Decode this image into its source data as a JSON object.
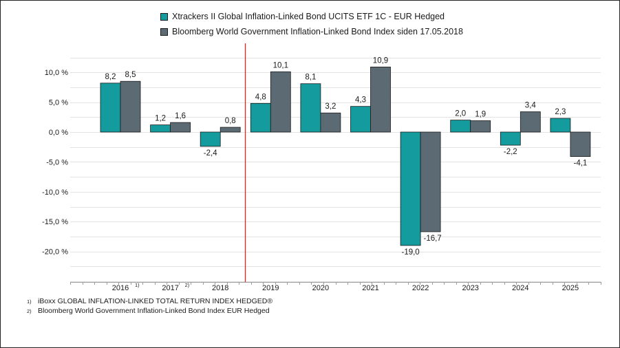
{
  "chart_data": {
    "type": "bar",
    "title": "",
    "xlabel": "",
    "ylabel": "",
    "categories": [
      "2016",
      "2017",
      "2018",
      "2019",
      "2020",
      "2021",
      "2022",
      "2023",
      "2024",
      "2025"
    ],
    "category_footnote_markers": [
      "1)",
      "2)",
      "",
      "",
      "",
      "",
      "",
      "",
      "",
      ""
    ],
    "series": [
      {
        "name": "Xtrackers II Global Inflation-Linked Bond UCITS ETF 1C - EUR Hedged",
        "color": "#139b9d",
        "values": [
          8.2,
          1.2,
          -2.4,
          4.8,
          8.1,
          4.3,
          -19.0,
          2.0,
          -2.2,
          2.3
        ],
        "labels": [
          "8,2",
          "1,2",
          "-2,4",
          "4,8",
          "8,1",
          "4,3",
          "-19,0",
          "2,0",
          "-2,2",
          "2,3"
        ]
      },
      {
        "name": "Bloomberg World Government Inflation-Linked Bond Index siden 17.05.2018",
        "color": "#5b6a73",
        "values": [
          8.5,
          1.6,
          0.8,
          10.1,
          3.2,
          10.9,
          -16.7,
          1.9,
          3.4,
          -4.1
        ],
        "labels": [
          "8,5",
          "1,6",
          "0,8",
          "10,1",
          "3,2",
          "10,9",
          "-16,7",
          "1,9",
          "3,4",
          "-4,1"
        ]
      }
    ],
    "ylim": [
      -25,
      14
    ],
    "yticks": [
      10,
      5,
      0,
      -5,
      -10,
      -15,
      -20
    ],
    "ytick_labels": [
      "10,0 %",
      "5,0 %",
      "0,0 %",
      "-5,0 %",
      "-10,0 %",
      "-15,0 %",
      "-20,0 %"
    ],
    "grid": true,
    "legend_position": "top-center",
    "reference_line": {
      "between_categories": [
        "2018",
        "2019"
      ],
      "color": "#e0261b"
    }
  },
  "footnotes": [
    {
      "marker": "1)",
      "text": "iBoxx GLOBAL INFLATION-LINKED TOTAL RETURN INDEX HEDGED®"
    },
    {
      "marker": "2)",
      "text": "Bloomberg World Government Inflation-Linked Bond Index EUR Hedged"
    }
  ],
  "colors": {
    "grid": "#e3e3e3",
    "axis": "#9a9a9a",
    "text": "#1a1a1a"
  }
}
